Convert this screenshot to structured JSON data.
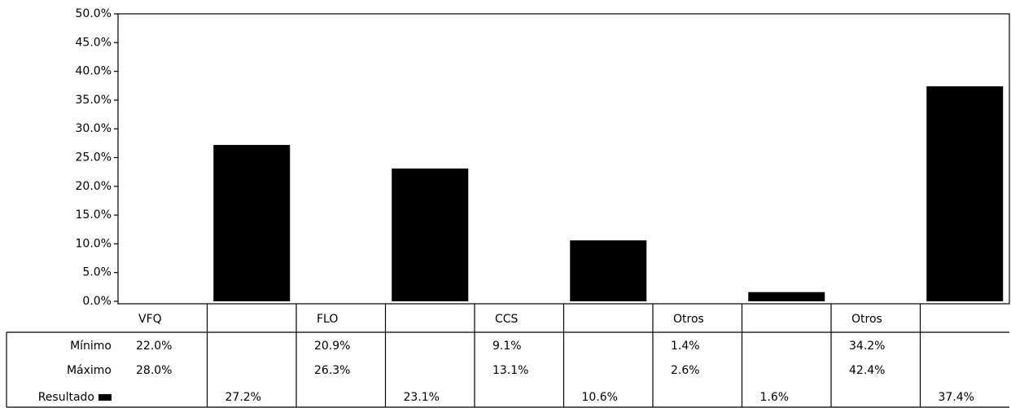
{
  "chart_data": {
    "type": "bar",
    "categories": [
      "VFQ",
      null,
      "FLO",
      null,
      "CCS",
      null,
      "Otros",
      null,
      "Otros",
      null
    ],
    "series": [
      {
        "name": "Mínimo",
        "values": [
          22.0,
          null,
          20.9,
          null,
          9.1,
          null,
          1.4,
          null,
          34.2,
          null
        ],
        "value_labels": [
          "22.0%",
          null,
          "20.9%",
          null,
          "9.1%",
          null,
          "1.4%",
          null,
          "34.2%",
          null
        ]
      },
      {
        "name": "Máximo",
        "values": [
          28.0,
          null,
          26.3,
          null,
          13.1,
          null,
          2.6,
          null,
          42.4,
          null
        ],
        "value_labels": [
          "28.0%",
          null,
          "26.3%",
          null,
          "13.1%",
          null,
          "2.6%",
          null,
          "42.4%",
          null
        ]
      },
      {
        "name": "Resultado",
        "color": "#000000",
        "values": [
          null,
          27.2,
          null,
          23.1,
          null,
          10.6,
          null,
          1.6,
          null,
          37.4
        ],
        "value_labels": [
          null,
          "27.2%",
          null,
          "23.1%",
          null,
          "10.6%",
          null,
          "1.6%",
          null,
          "37.4%"
        ]
      }
    ],
    "ylim": [
      0,
      50
    ],
    "yticks": [
      {
        "value": 0,
        "label": "0.0%"
      },
      {
        "value": 5,
        "label": "5.0%"
      },
      {
        "value": 10,
        "label": "10.0%"
      },
      {
        "value": 15,
        "label": "15.0%"
      },
      {
        "value": 20,
        "label": "20.0%"
      },
      {
        "value": 25,
        "label": "25.0%"
      },
      {
        "value": 30,
        "label": "30.0%"
      },
      {
        "value": 35,
        "label": "35.0%"
      },
      {
        "value": 40,
        "label": "40.0%"
      },
      {
        "value": 45,
        "label": "45.0%"
      },
      {
        "value": 50,
        "label": "50.0%"
      }
    ]
  }
}
